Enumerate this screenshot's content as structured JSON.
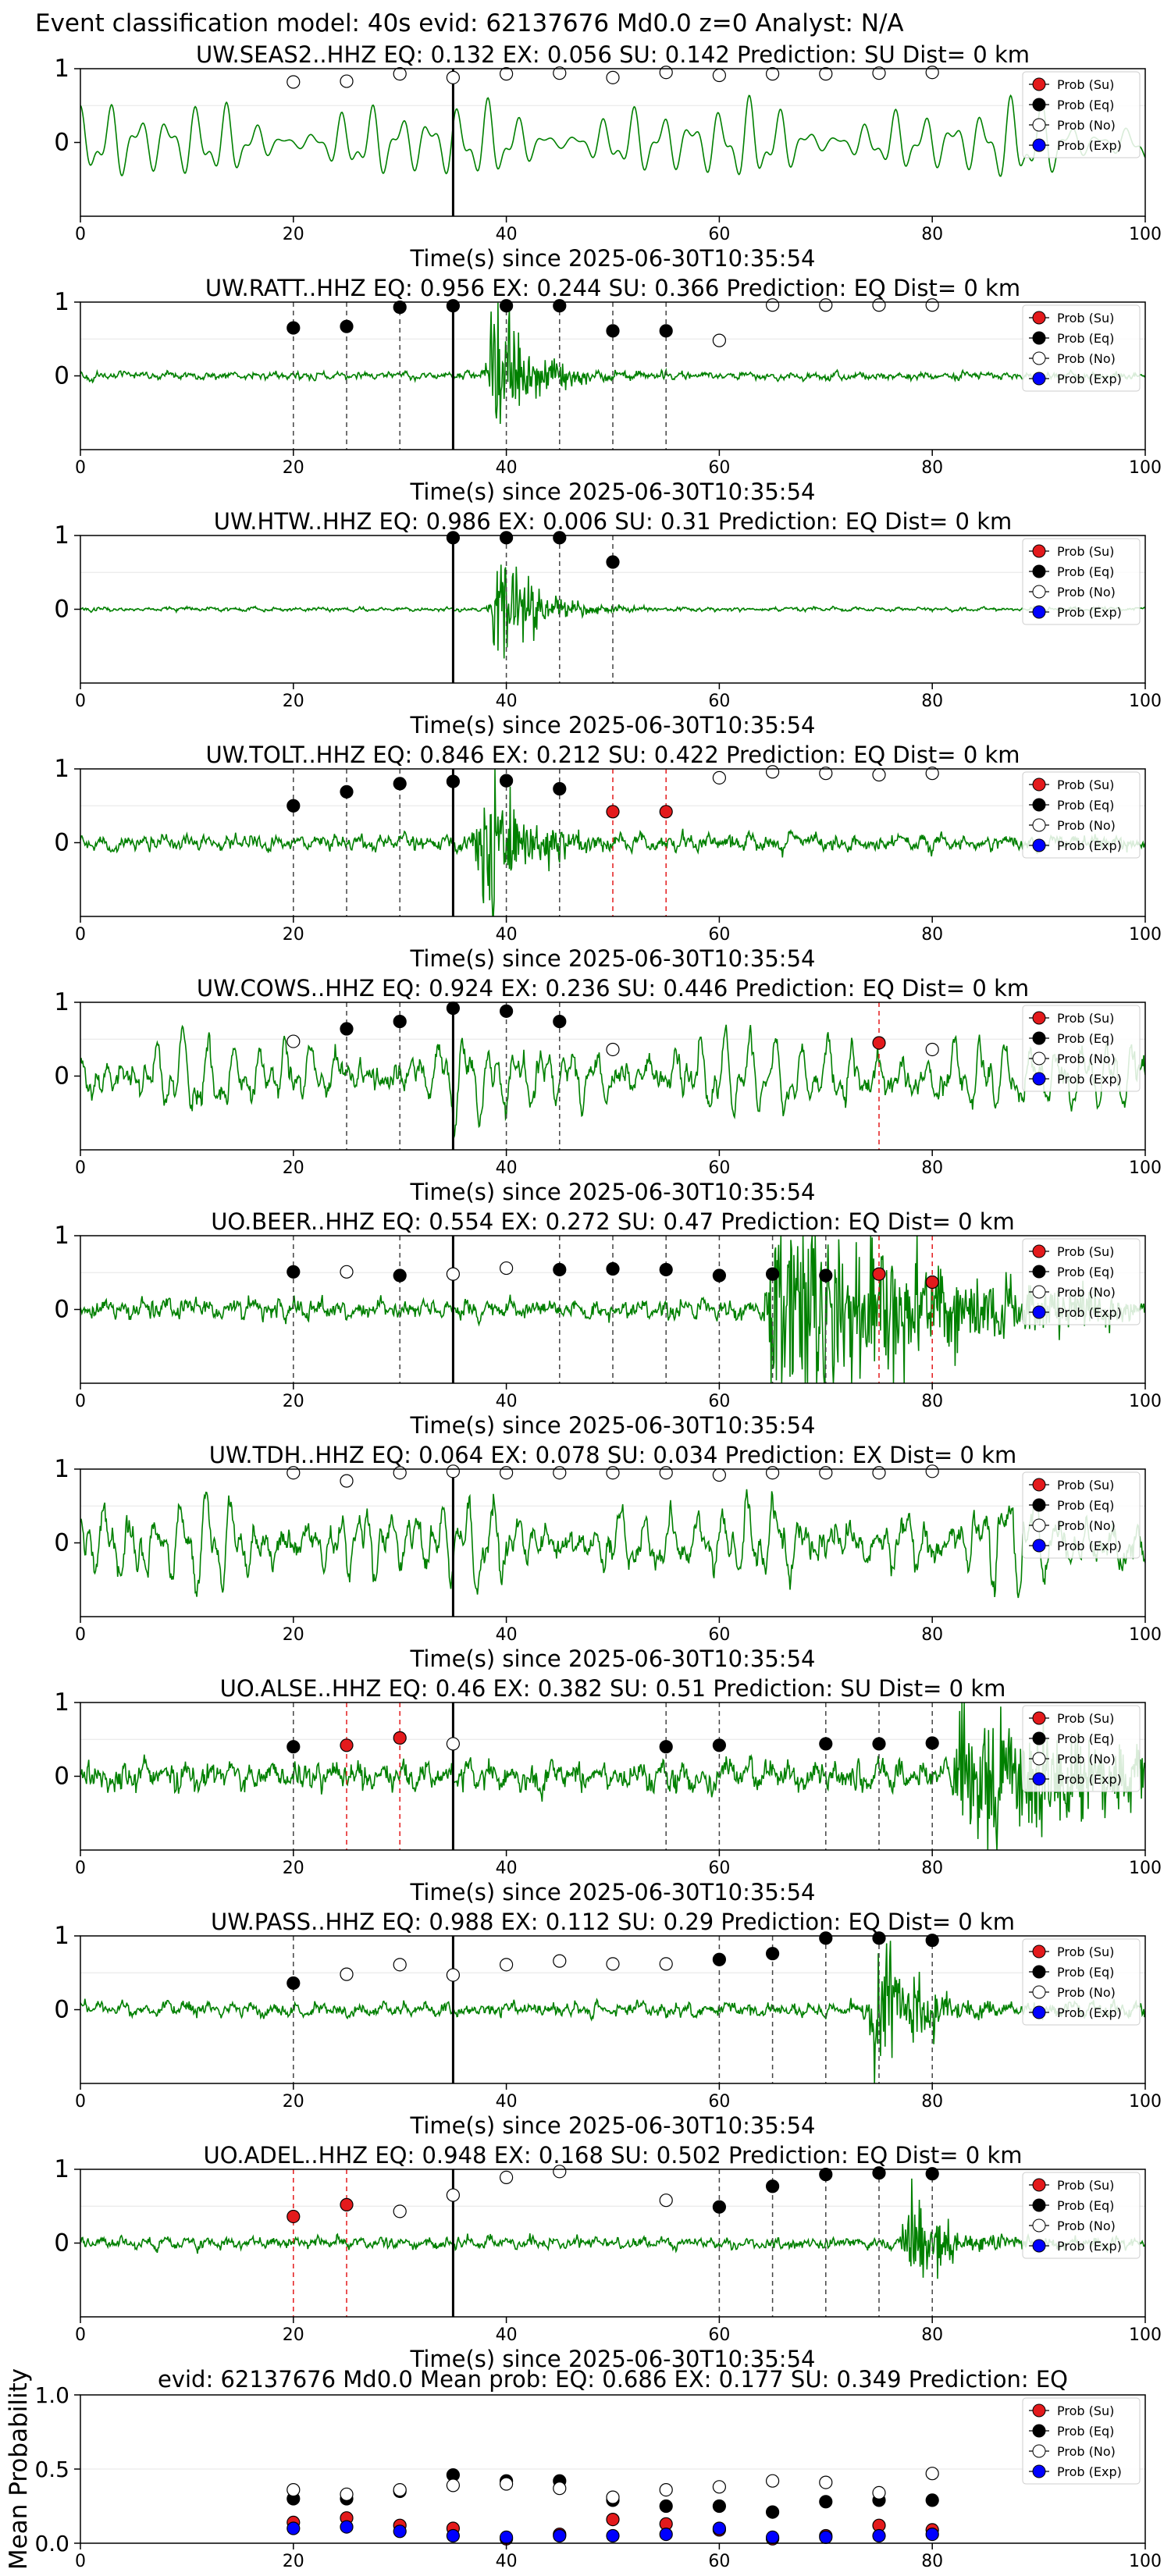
{
  "figure_title": "Event classification model: 40s evid: 62137676 Md0.0 z=0 Analyst: N/A",
  "legend_labels": [
    "Prob (Su)",
    "Prob (Eq)",
    "Prob (No)",
    "Prob (Exp)"
  ],
  "colors": {
    "su": "#e31a1c",
    "eq": "#000000",
    "no": "#ffffff",
    "exp": "#0000ff",
    "trace": "#008000",
    "vline": "#000000"
  },
  "chart_data": [
    {
      "type": "line",
      "title": "UW.SEAS2..HHZ   EQ: 0.132   EX: 0.056   SU: 0.142   Prediction: SU    Dist= 0 km",
      "xlabel": "Time(s) since 2025-06-30T10:35:54",
      "xlim": [
        0,
        100
      ],
      "ylim": [
        -1,
        1
      ],
      "x_ticks": [
        "0",
        "20",
        "40",
        "60",
        "80",
        "100"
      ],
      "y_ticks": [
        "1",
        "0"
      ],
      "event_time": 35,
      "trace": {
        "style": "smooth",
        "amplitude": 0.55,
        "seed": 11
      },
      "marker_x": [
        20,
        25,
        30,
        35,
        40,
        45,
        50,
        55,
        60,
        65,
        70,
        75,
        80
      ],
      "markers": [
        {
          "x": 20,
          "y": 0.82,
          "cls": "no"
        },
        {
          "x": 25,
          "y": 0.83,
          "cls": "no"
        },
        {
          "x": 30,
          "y": 0.93,
          "cls": "no"
        },
        {
          "x": 35,
          "y": 0.88,
          "cls": "no"
        },
        {
          "x": 40,
          "y": 0.93,
          "cls": "no"
        },
        {
          "x": 45,
          "y": 0.94,
          "cls": "no"
        },
        {
          "x": 50,
          "y": 0.88,
          "cls": "no"
        },
        {
          "x": 55,
          "y": 0.95,
          "cls": "no"
        },
        {
          "x": 60,
          "y": 0.91,
          "cls": "no"
        },
        {
          "x": 65,
          "y": 0.93,
          "cls": "no"
        },
        {
          "x": 70,
          "y": 0.93,
          "cls": "no"
        },
        {
          "x": 75,
          "y": 0.94,
          "cls": "no"
        },
        {
          "x": 80,
          "y": 0.95,
          "cls": "no"
        }
      ]
    },
    {
      "type": "line",
      "title": "UW.RATT..HHZ   EQ: 0.956  EX: 0.244  SU: 0.366   Prediction: EQ    Dist= 0 km",
      "xlabel": "Time(s) since 2025-06-30T10:35:54",
      "xlim": [
        0,
        100
      ],
      "ylim": [
        -1,
        1
      ],
      "x_ticks": [
        "0",
        "20",
        "40",
        "60",
        "80",
        "100"
      ],
      "y_ticks": [
        "1",
        "0"
      ],
      "event_time": 35,
      "trace": {
        "style": "quiet_burst",
        "amplitude": 0.08,
        "burst_center": 39,
        "burst_amp": 0.7,
        "seed": 23
      },
      "markers": [
        {
          "x": 20,
          "y": 0.65,
          "cls": "eq",
          "line": "eq"
        },
        {
          "x": 25,
          "y": 0.67,
          "cls": "eq",
          "line": "eq"
        },
        {
          "x": 30,
          "y": 0.93,
          "cls": "eq",
          "line": "eq"
        },
        {
          "x": 35,
          "y": 0.95,
          "cls": "eq"
        },
        {
          "x": 40,
          "y": 0.95,
          "cls": "eq",
          "line": "eq"
        },
        {
          "x": 45,
          "y": 0.95,
          "cls": "eq",
          "line": "eq"
        },
        {
          "x": 50,
          "y": 0.61,
          "cls": "eq",
          "line": "eq"
        },
        {
          "x": 55,
          "y": 0.61,
          "cls": "eq",
          "line": "eq"
        },
        {
          "x": 60,
          "y": 0.48,
          "cls": "no"
        },
        {
          "x": 65,
          "y": 0.96,
          "cls": "no"
        },
        {
          "x": 70,
          "y": 0.96,
          "cls": "no"
        },
        {
          "x": 75,
          "y": 0.96,
          "cls": "no"
        },
        {
          "x": 80,
          "y": 0.96,
          "cls": "no"
        }
      ]
    },
    {
      "type": "line",
      "title": "UW.HTW..HHZ   EQ: 0.986  EX: 0.006  SU: 0.31   Prediction: EQ    Dist= 0 km",
      "xlabel": "Time(s) since 2025-06-30T10:35:54",
      "xlim": [
        0,
        100
      ],
      "ylim": [
        -1,
        1
      ],
      "x_ticks": [
        "0",
        "20",
        "40",
        "60",
        "80",
        "100"
      ],
      "y_ticks": [
        "1",
        "0"
      ],
      "event_time": 35,
      "trace": {
        "style": "quiet_burst",
        "amplitude": 0.04,
        "burst_center": 39.5,
        "burst_amp": 0.6,
        "seed": 37
      },
      "markers": [
        {
          "x": 35,
          "y": 0.97,
          "cls": "eq"
        },
        {
          "x": 40,
          "y": 0.97,
          "cls": "eq",
          "line": "eq"
        },
        {
          "x": 45,
          "y": 0.97,
          "cls": "eq",
          "line": "eq"
        },
        {
          "x": 50,
          "y": 0.64,
          "cls": "eq",
          "line": "eq"
        }
      ]
    },
    {
      "type": "line",
      "title": "UW.TOLT..HHZ   EQ: 0.846  EX: 0.212  SU: 0.422   Prediction: EQ    Dist= 0 km",
      "xlabel": "Time(s) since 2025-06-30T10:35:54",
      "xlim": [
        0,
        100
      ],
      "ylim": [
        -1,
        1
      ],
      "x_ticks": [
        "0",
        "20",
        "40",
        "60",
        "80",
        "100"
      ],
      "y_ticks": [
        "1",
        "0"
      ],
      "event_time": 35,
      "trace": {
        "style": "noisy_burst",
        "amplitude": 0.16,
        "burst_center": 38,
        "burst_amp": 0.95,
        "seed": 41
      },
      "markers": [
        {
          "x": 20,
          "y": 0.5,
          "cls": "eq",
          "line": "eq"
        },
        {
          "x": 25,
          "y": 0.69,
          "cls": "eq",
          "line": "eq"
        },
        {
          "x": 30,
          "y": 0.8,
          "cls": "eq",
          "line": "eq"
        },
        {
          "x": 35,
          "y": 0.83,
          "cls": "eq"
        },
        {
          "x": 40,
          "y": 0.84,
          "cls": "eq",
          "line": "eq"
        },
        {
          "x": 45,
          "y": 0.73,
          "cls": "eq",
          "line": "eq"
        },
        {
          "x": 50,
          "y": 0.42,
          "cls": "su",
          "line": "su"
        },
        {
          "x": 55,
          "y": 0.42,
          "cls": "su",
          "line": "su"
        },
        {
          "x": 60,
          "y": 0.88,
          "cls": "no"
        },
        {
          "x": 65,
          "y": 0.96,
          "cls": "no"
        },
        {
          "x": 70,
          "y": 0.94,
          "cls": "no"
        },
        {
          "x": 75,
          "y": 0.92,
          "cls": "no"
        },
        {
          "x": 80,
          "y": 0.94,
          "cls": "no"
        }
      ]
    },
    {
      "type": "line",
      "title": "UW.COWS..HHZ   EQ: 0.924  EX: 0.236  SU: 0.446   Prediction: EQ    Dist= 0 km",
      "xlabel": "Time(s) since 2025-06-30T10:35:54",
      "xlim": [
        0,
        100
      ],
      "ylim": [
        -1,
        1
      ],
      "x_ticks": [
        "0",
        "20",
        "40",
        "60",
        "80",
        "100"
      ],
      "y_ticks": [
        "1",
        "0"
      ],
      "event_time": 35,
      "trace": {
        "style": "smooth_noisy",
        "amplitude": 0.55,
        "seed": 53
      },
      "markers": [
        {
          "x": 20,
          "y": 0.47,
          "cls": "no"
        },
        {
          "x": 25,
          "y": 0.64,
          "cls": "eq",
          "line": "eq"
        },
        {
          "x": 30,
          "y": 0.74,
          "cls": "eq",
          "line": "eq"
        },
        {
          "x": 35,
          "y": 0.92,
          "cls": "eq"
        },
        {
          "x": 40,
          "y": 0.88,
          "cls": "eq",
          "line": "eq"
        },
        {
          "x": 45,
          "y": 0.74,
          "cls": "eq",
          "line": "eq"
        },
        {
          "x": 50,
          "y": 0.36,
          "cls": "no"
        },
        {
          "x": 75,
          "y": 0.45,
          "cls": "su",
          "line": "su"
        },
        {
          "x": 80,
          "y": 0.36,
          "cls": "no"
        }
      ]
    },
    {
      "type": "line",
      "title": "UO.BEER..HHZ   EQ: 0.554  EX: 0.272  SU: 0.47   Prediction: EQ    Dist= 0 km",
      "xlabel": "Time(s) since 2025-06-30T10:35:54",
      "xlim": [
        0,
        100
      ],
      "ylim": [
        -1,
        1
      ],
      "x_ticks": [
        "0",
        "20",
        "40",
        "60",
        "80",
        "100"
      ],
      "y_ticks": [
        "1",
        "0"
      ],
      "event_time": 35,
      "trace": {
        "style": "late_burst",
        "amplitude": 0.2,
        "burst_center": 70,
        "burst_amp": 0.85,
        "seed": 67
      },
      "markers": [
        {
          "x": 20,
          "y": 0.51,
          "cls": "eq",
          "line": "eq"
        },
        {
          "x": 25,
          "y": 0.51,
          "cls": "no"
        },
        {
          "x": 30,
          "y": 0.46,
          "cls": "eq",
          "line": "eq"
        },
        {
          "x": 35,
          "y": 0.48,
          "cls": "no"
        },
        {
          "x": 40,
          "y": 0.56,
          "cls": "no"
        },
        {
          "x": 45,
          "y": 0.54,
          "cls": "eq",
          "line": "eq"
        },
        {
          "x": 50,
          "y": 0.55,
          "cls": "eq",
          "line": "eq"
        },
        {
          "x": 55,
          "y": 0.54,
          "cls": "eq",
          "line": "eq"
        },
        {
          "x": 60,
          "y": 0.46,
          "cls": "eq",
          "line": "eq"
        },
        {
          "x": 65,
          "y": 0.48,
          "cls": "eq",
          "line": "eq"
        },
        {
          "x": 70,
          "y": 0.46,
          "cls": "eq",
          "line": "eq"
        },
        {
          "x": 75,
          "y": 0.48,
          "cls": "su",
          "line": "su"
        },
        {
          "x": 80,
          "y": 0.37,
          "cls": "su",
          "line": "su"
        }
      ]
    },
    {
      "type": "line",
      "title": "UW.TDH..HHZ   EQ: 0.064  EX: 0.078  SU: 0.034   Prediction: EX    Dist= 0 km",
      "xlabel": "Time(s) since 2025-06-30T10:35:54",
      "xlim": [
        0,
        100
      ],
      "ylim": [
        -1,
        1
      ],
      "x_ticks": [
        "0",
        "20",
        "40",
        "60",
        "80",
        "100"
      ],
      "y_ticks": [
        "1",
        "0"
      ],
      "event_time": 35,
      "trace": {
        "style": "smooth_noisy",
        "amplitude": 0.6,
        "seed": 79
      },
      "markers": [
        {
          "x": 20,
          "y": 0.95,
          "cls": "no"
        },
        {
          "x": 25,
          "y": 0.84,
          "cls": "no"
        },
        {
          "x": 30,
          "y": 0.95,
          "cls": "no"
        },
        {
          "x": 35,
          "y": 0.97,
          "cls": "no"
        },
        {
          "x": 40,
          "y": 0.95,
          "cls": "no"
        },
        {
          "x": 45,
          "y": 0.95,
          "cls": "no"
        },
        {
          "x": 50,
          "y": 0.95,
          "cls": "no"
        },
        {
          "x": 55,
          "y": 0.95,
          "cls": "no"
        },
        {
          "x": 60,
          "y": 0.92,
          "cls": "no"
        },
        {
          "x": 65,
          "y": 0.95,
          "cls": "no"
        },
        {
          "x": 70,
          "y": 0.95,
          "cls": "no"
        },
        {
          "x": 75,
          "y": 0.95,
          "cls": "no"
        },
        {
          "x": 80,
          "y": 0.97,
          "cls": "no"
        }
      ]
    },
    {
      "type": "line",
      "title": "UO.ALSE..HHZ   EQ: 0.46  EX: 0.382  SU: 0.51   Prediction: SU    Dist= 0 km",
      "xlabel": "Time(s) since 2025-06-30T10:35:54",
      "xlim": [
        0,
        100
      ],
      "ylim": [
        -1,
        1
      ],
      "x_ticks": [
        "0",
        "20",
        "40",
        "60",
        "80",
        "100"
      ],
      "y_ticks": [
        "1",
        "0"
      ],
      "event_time": 35,
      "trace": {
        "style": "late_burst",
        "amplitude": 0.32,
        "burst_center": 88,
        "burst_amp": 0.6,
        "seed": 83
      },
      "markers": [
        {
          "x": 20,
          "y": 0.4,
          "cls": "eq",
          "line": "eq"
        },
        {
          "x": 25,
          "y": 0.42,
          "cls": "su",
          "line": "su"
        },
        {
          "x": 30,
          "y": 0.52,
          "cls": "su",
          "line": "su"
        },
        {
          "x": 35,
          "y": 0.44,
          "cls": "no"
        },
        {
          "x": 55,
          "y": 0.4,
          "cls": "eq",
          "line": "eq"
        },
        {
          "x": 60,
          "y": 0.42,
          "cls": "eq",
          "line": "eq"
        },
        {
          "x": 70,
          "y": 0.44,
          "cls": "eq",
          "line": "eq"
        },
        {
          "x": 75,
          "y": 0.44,
          "cls": "eq",
          "line": "eq"
        },
        {
          "x": 80,
          "y": 0.45,
          "cls": "eq",
          "line": "eq"
        }
      ]
    },
    {
      "type": "line",
      "title": "UW.PASS..HHZ   EQ: 0.988  EX: 0.112  SU: 0.29   Prediction: EQ    Dist= 0 km",
      "xlabel": "Time(s) since 2025-06-30T10:35:54",
      "xlim": [
        0,
        100
      ],
      "ylim": [
        -1,
        1
      ],
      "x_ticks": [
        "0",
        "20",
        "40",
        "60",
        "80",
        "100"
      ],
      "y_ticks": [
        "1",
        "0"
      ],
      "event_time": 35,
      "trace": {
        "style": "noisy_burst",
        "amplitude": 0.15,
        "burst_center": 75,
        "burst_amp": 0.9,
        "seed": 97
      },
      "markers": [
        {
          "x": 20,
          "y": 0.36,
          "cls": "eq",
          "line": "eq"
        },
        {
          "x": 25,
          "y": 0.48,
          "cls": "no"
        },
        {
          "x": 30,
          "y": 0.61,
          "cls": "no"
        },
        {
          "x": 35,
          "y": 0.47,
          "cls": "no"
        },
        {
          "x": 40,
          "y": 0.61,
          "cls": "no"
        },
        {
          "x": 45,
          "y": 0.66,
          "cls": "no"
        },
        {
          "x": 50,
          "y": 0.62,
          "cls": "no"
        },
        {
          "x": 55,
          "y": 0.62,
          "cls": "no"
        },
        {
          "x": 60,
          "y": 0.68,
          "cls": "eq",
          "line": "eq"
        },
        {
          "x": 65,
          "y": 0.76,
          "cls": "eq",
          "line": "eq"
        },
        {
          "x": 70,
          "y": 0.97,
          "cls": "eq",
          "line": "eq"
        },
        {
          "x": 75,
          "y": 0.97,
          "cls": "eq",
          "line": "eq"
        },
        {
          "x": 80,
          "y": 0.94,
          "cls": "eq",
          "line": "eq"
        }
      ]
    },
    {
      "type": "line",
      "title": "UO.ADEL..HHZ   EQ: 0.948  EX: 0.168  SU: 0.502   Prediction: EQ    Dist= 0 km",
      "xlabel": "Time(s) since 2025-06-30T10:35:54",
      "xlim": [
        0,
        100
      ],
      "ylim": [
        -1,
        1
      ],
      "x_ticks": [
        "0",
        "20",
        "40",
        "60",
        "80",
        "100"
      ],
      "y_ticks": [
        "1",
        "0"
      ],
      "event_time": 35,
      "trace": {
        "style": "noisy_burst",
        "amplitude": 0.12,
        "burst_center": 78,
        "burst_amp": 0.5,
        "seed": 101
      },
      "markers": [
        {
          "x": 20,
          "y": 0.36,
          "cls": "su",
          "line": "su"
        },
        {
          "x": 25,
          "y": 0.52,
          "cls": "su",
          "line": "su"
        },
        {
          "x": 30,
          "y": 0.43,
          "cls": "no"
        },
        {
          "x": 35,
          "y": 0.65,
          "cls": "no"
        },
        {
          "x": 40,
          "y": 0.89,
          "cls": "no"
        },
        {
          "x": 45,
          "y": 0.97,
          "cls": "no"
        },
        {
          "x": 55,
          "y": 0.58,
          "cls": "no"
        },
        {
          "x": 60,
          "y": 0.49,
          "cls": "eq",
          "line": "eq"
        },
        {
          "x": 65,
          "y": 0.77,
          "cls": "eq",
          "line": "eq"
        },
        {
          "x": 70,
          "y": 0.93,
          "cls": "eq",
          "line": "eq"
        },
        {
          "x": 75,
          "y": 0.95,
          "cls": "eq",
          "line": "eq"
        },
        {
          "x": 80,
          "y": 0.94,
          "cls": "eq",
          "line": "eq"
        }
      ]
    },
    {
      "type": "scatter",
      "title": "evid: 62137676  Md0.0   Mean prob:   EQ: 0.686  EX: 0.177  SU: 0.349   Prediction: EQ",
      "ylabel": "Mean Probability",
      "xlim": [
        0,
        100
      ],
      "ylim": [
        0,
        1
      ],
      "x_ticks": [
        "0",
        "20",
        "40",
        "60",
        "80",
        "100"
      ],
      "y_ticks": [
        "0.0",
        "0.5",
        "1.0"
      ],
      "x": [
        20,
        25,
        30,
        35,
        40,
        45,
        50,
        55,
        60,
        65,
        70,
        75,
        80
      ],
      "series": [
        {
          "name": "Prob (Su)",
          "cls": "su",
          "values": [
            0.14,
            0.17,
            0.12,
            0.1,
            0.03,
            0.06,
            0.16,
            0.13,
            0.09,
            0.03,
            0.05,
            0.12,
            0.09
          ]
        },
        {
          "name": "Prob (Eq)",
          "cls": "eq",
          "values": [
            0.3,
            0.3,
            0.35,
            0.46,
            0.42,
            0.42,
            0.29,
            0.25,
            0.25,
            0.21,
            0.28,
            0.29,
            0.29
          ]
        },
        {
          "name": "Prob (No)",
          "cls": "no",
          "values": [
            0.36,
            0.33,
            0.36,
            0.39,
            0.4,
            0.37,
            0.31,
            0.36,
            0.38,
            0.42,
            0.41,
            0.34,
            0.47
          ]
        },
        {
          "name": "Prob (Exp)",
          "cls": "exp",
          "values": [
            0.1,
            0.11,
            0.08,
            0.05,
            0.04,
            0.05,
            0.05,
            0.06,
            0.1,
            0.04,
            0.04,
            0.05,
            0.06
          ]
        }
      ]
    }
  ]
}
